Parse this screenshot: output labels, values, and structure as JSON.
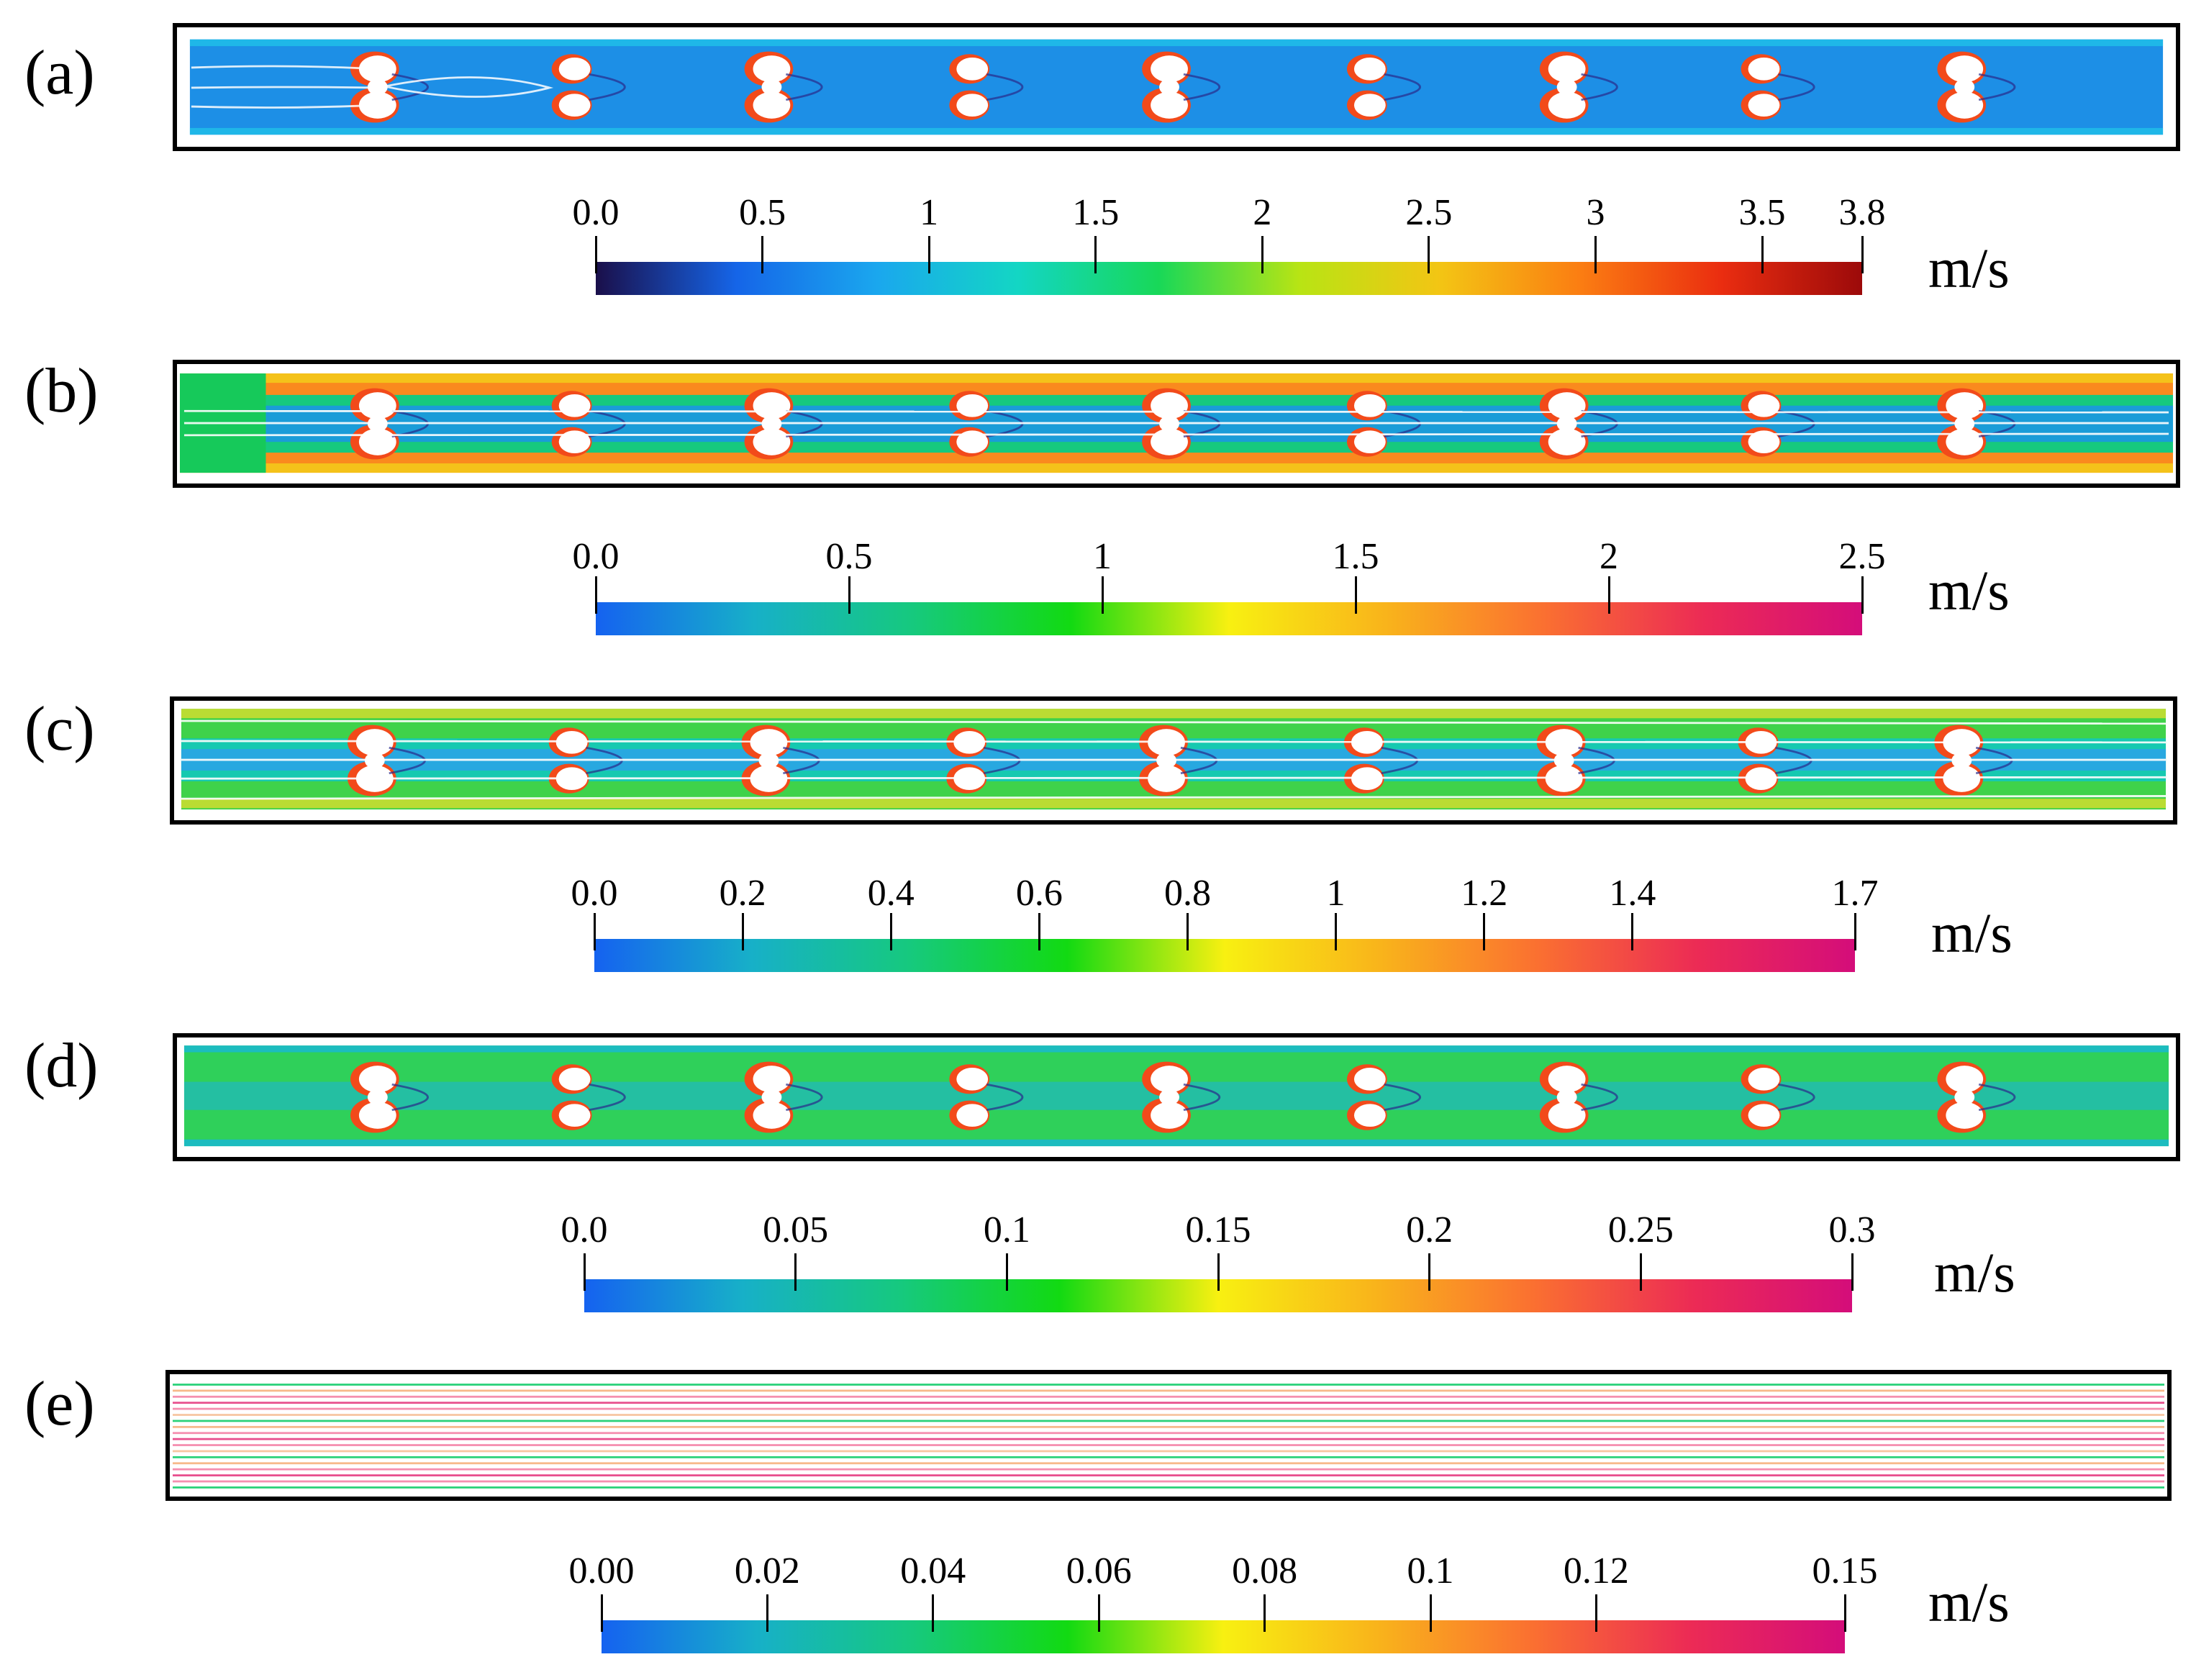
{
  "panels": [
    {
      "label": "(a)",
      "unit": "m/s",
      "colorbar": {
        "ticks": [
          "0.0",
          "0.5",
          "1",
          "1.5",
          "2",
          "2.5",
          "3",
          "3.5",
          "3.8"
        ],
        "values": [
          0.0,
          0.5,
          1.0,
          1.5,
          2.0,
          2.5,
          3.0,
          3.5,
          3.8
        ],
        "min": 0.0,
        "max": 3.8,
        "colors": [
          "#1a0f4a",
          "#1565e8",
          "#1aa7ee",
          "#13d6c4",
          "#18d858",
          "#b8e414",
          "#f3c514",
          "#fb7d12",
          "#ea2d10",
          "#9c0a0a"
        ]
      }
    },
    {
      "label": "(b)",
      "unit": "m/s",
      "colorbar": {
        "ticks": [
          "0.0",
          "0.5",
          "1",
          "1.5",
          "2",
          "2.5"
        ],
        "values": [
          0.0,
          0.5,
          1.0,
          1.5,
          2.0,
          2.5
        ],
        "min": 0.0,
        "max": 2.5,
        "colors": [
          "#1562f0",
          "#17b0c8",
          "#16c97e",
          "#12da12",
          "#f8f011",
          "#f9b31b",
          "#fa6f31",
          "#ec2b55",
          "#d40d7a"
        ]
      }
    },
    {
      "label": "(c)",
      "unit": "m/s",
      "colorbar": {
        "ticks": [
          "0.0",
          "0.2",
          "0.4",
          "0.6",
          "0.8",
          "1",
          "1.2",
          "1.4",
          "1.7"
        ],
        "values": [
          0.0,
          0.2,
          0.4,
          0.6,
          0.8,
          1.0,
          1.2,
          1.4,
          1.7
        ],
        "min": 0.0,
        "max": 1.7,
        "colors": [
          "#1562f0",
          "#17b0c8",
          "#16c97e",
          "#12da12",
          "#f8f011",
          "#f9b31b",
          "#fa6f31",
          "#ec2b55",
          "#d40d7a"
        ]
      }
    },
    {
      "label": "(d)",
      "unit": "m/s",
      "colorbar": {
        "ticks": [
          "0.0",
          "0.05",
          "0.1",
          "0.15",
          "0.2",
          "0.25",
          "0.3"
        ],
        "values": [
          0.0,
          0.05,
          0.1,
          0.15,
          0.2,
          0.25,
          0.3
        ],
        "min": 0.0,
        "max": 0.3,
        "colors": [
          "#1562f0",
          "#17b0c8",
          "#16c97e",
          "#12da12",
          "#f8f011",
          "#f9b31b",
          "#fa6f31",
          "#ec2b55",
          "#d40d7a"
        ]
      }
    },
    {
      "label": "(e)",
      "unit": "m/s",
      "colorbar": {
        "ticks": [
          "0.00",
          "0.02",
          "0.04",
          "0.06",
          "0.08",
          "0.1",
          "0.12",
          "0.15"
        ],
        "values": [
          0.0,
          0.02,
          0.04,
          0.06,
          0.08,
          0.1,
          0.12,
          0.15
        ],
        "min": 0.0,
        "max": 0.15,
        "colors": [
          "#1562f0",
          "#17b0c8",
          "#16c97e",
          "#12da12",
          "#f8f011",
          "#f9b31b",
          "#fa6f31",
          "#ec2b55",
          "#d40d7a"
        ]
      }
    }
  ]
}
